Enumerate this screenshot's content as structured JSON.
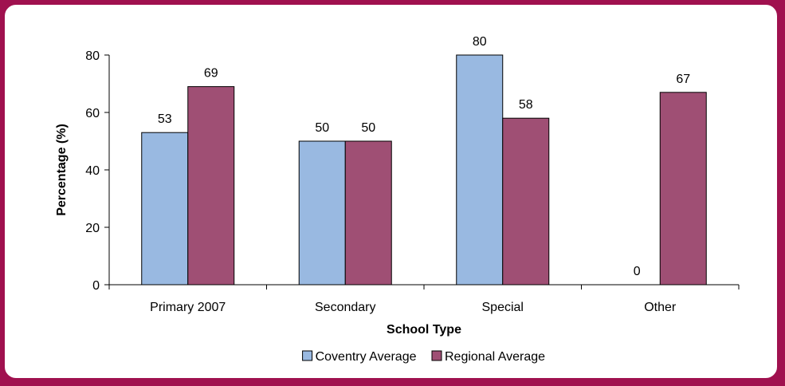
{
  "chart_data": {
    "type": "bar",
    "title": "",
    "xlabel": "School Type",
    "ylabel": "Percentage (%)",
    "categories": [
      "Primary 2007",
      "Secondary",
      "Special",
      "Other"
    ],
    "series": [
      {
        "name": "Coventry Average",
        "values": [
          53,
          50,
          80,
          0
        ],
        "color": "#99b9e1"
      },
      {
        "name": "Regional Average",
        "values": [
          69,
          50,
          58,
          67
        ],
        "color": "#9f4f74"
      }
    ],
    "ylim": [
      0,
      80
    ],
    "yticks": [
      0,
      20,
      40,
      60,
      80
    ],
    "grid": false,
    "legend_position": "bottom"
  }
}
